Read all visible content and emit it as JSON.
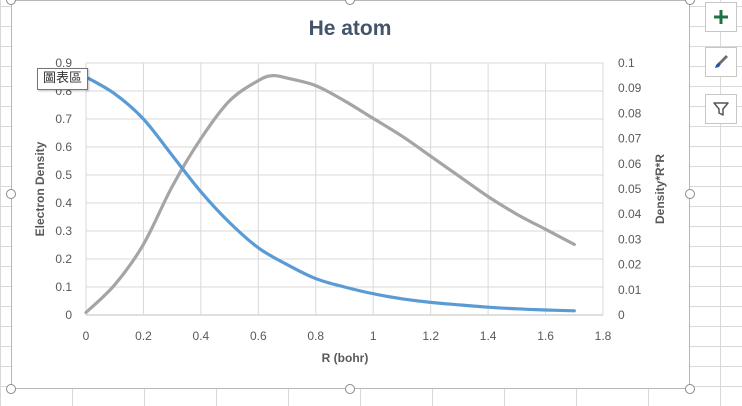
{
  "tooltip": "圖表區",
  "side_buttons": [
    {
      "icon": "plus-icon",
      "color": "#217346"
    },
    {
      "icon": "paintbrush-icon",
      "color": "#2b579a"
    },
    {
      "icon": "filter-icon",
      "color": "#555555"
    }
  ],
  "colors": {
    "series_blue": "#5b9bd5",
    "series_gray": "#a5a5a5",
    "title": "#44546a",
    "axis_text": "#595959"
  },
  "chart_data": {
    "type": "line",
    "title": "He atom",
    "xlabel": "R (bohr)",
    "ylabel": "Electron Density",
    "y2label": "Density*R*R",
    "xlim": [
      0,
      1.8
    ],
    "ylim": [
      0,
      0.9
    ],
    "y2lim": [
      0,
      0.1
    ],
    "xticks": [
      "0",
      "0.2",
      "0.4",
      "0.6",
      "0.8",
      "1",
      "1.2",
      "1.4",
      "1.6",
      "1.8"
    ],
    "yticks": [
      "0",
      "0.1",
      "0.2",
      "0.3",
      "0.4",
      "0.5",
      "0.6",
      "0.7",
      "0.8",
      "0.9"
    ],
    "y2ticks": [
      "0",
      "0.01",
      "0.02",
      "0.03",
      "0.04",
      "0.05",
      "0.06",
      "0.07",
      "0.08",
      "0.09",
      "0.1"
    ],
    "grid": true,
    "series": [
      {
        "axis": "left",
        "x": [
          0,
          0.1,
          0.2,
          0.3,
          0.4,
          0.5,
          0.6,
          0.7,
          0.8,
          0.9,
          1.0,
          1.1,
          1.2,
          1.3,
          1.4,
          1.5,
          1.6,
          1.7
        ],
        "values": [
          0.85,
          0.79,
          0.7,
          0.57,
          0.44,
          0.33,
          0.24,
          0.18,
          0.13,
          0.1,
          0.076,
          0.058,
          0.045,
          0.036,
          0.028,
          0.022,
          0.018,
          0.015
        ]
      },
      {
        "axis": "right",
        "x": [
          0,
          0.1,
          0.2,
          0.3,
          0.4,
          0.5,
          0.6,
          0.65,
          0.7,
          0.8,
          0.9,
          1.0,
          1.1,
          1.2,
          1.3,
          1.4,
          1.5,
          1.6,
          1.7
        ],
        "values": [
          0.001,
          0.012,
          0.028,
          0.051,
          0.07,
          0.085,
          0.093,
          0.095,
          0.094,
          0.091,
          0.085,
          0.078,
          0.071,
          0.063,
          0.055,
          0.047,
          0.04,
          0.034,
          0.028
        ]
      }
    ]
  }
}
